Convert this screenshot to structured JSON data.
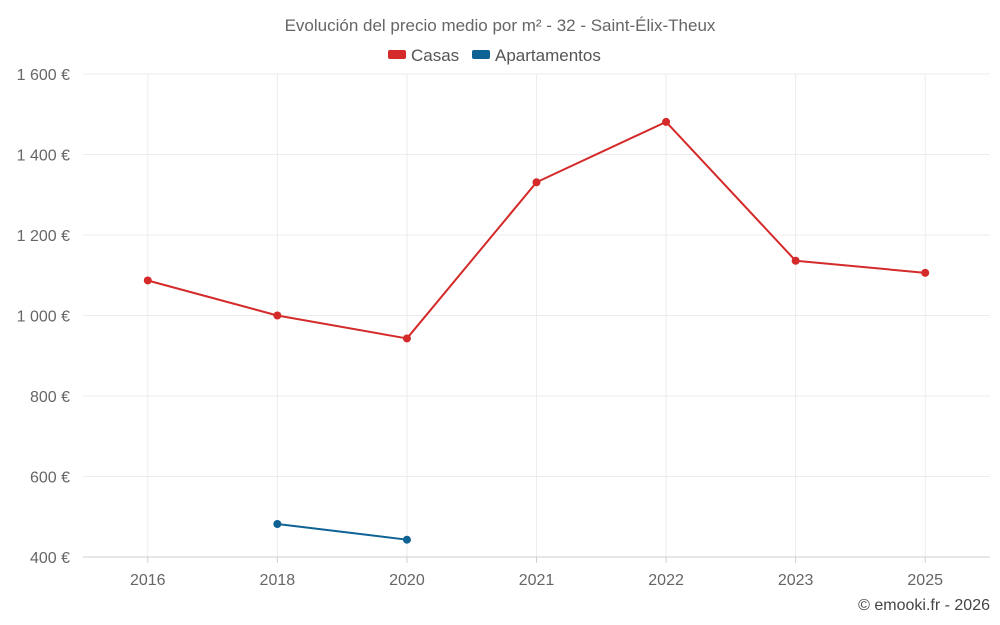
{
  "chart_data": {
    "type": "line",
    "title": "Evolución del precio medio por m² - 32 - Saint-Élix-Theux",
    "categories": [
      "2016",
      "2018",
      "2020",
      "2021",
      "2022",
      "2023",
      "2025"
    ],
    "ylim": [
      400,
      1600
    ],
    "yticks": [
      400,
      600,
      800,
      1000,
      1200,
      1400,
      1600
    ],
    "ytick_labels": [
      "400 €",
      "600 €",
      "800 €",
      "1 000 €",
      "1 200 €",
      "1 400 €",
      "1 600 €"
    ],
    "legend_position": "top-center",
    "grid": true,
    "series": [
      {
        "name": "Casas",
        "color": "#d42a2a",
        "values": [
          1087,
          1000,
          943,
          1331,
          1481,
          1136,
          1106
        ]
      },
      {
        "name": "Apartamentos",
        "color": "#0e6294",
        "values": [
          null,
          482,
          443,
          null,
          null,
          null,
          null
        ]
      }
    ]
  },
  "credit": "© emooki.fr - 2026"
}
